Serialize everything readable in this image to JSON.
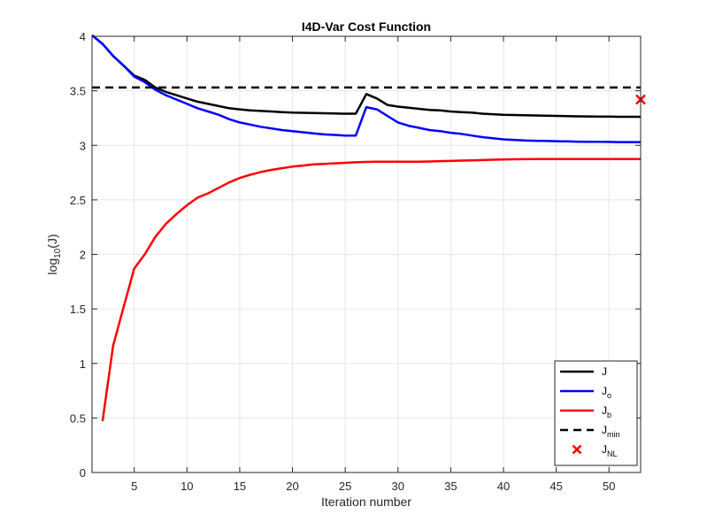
{
  "chart_data": {
    "type": "line",
    "title": "I4D-Var Cost Function",
    "xlabel": "Iteration number",
    "ylabel_base": "log",
    "ylabel_sub": "10",
    "ylabel_tail": "(J)",
    "xlim": [
      1,
      53
    ],
    "ylim": [
      0,
      4
    ],
    "xticks": [
      5,
      10,
      15,
      20,
      25,
      30,
      35,
      40,
      45,
      50
    ],
    "yticks": [
      0,
      0.5,
      1,
      1.5,
      2,
      2.5,
      3,
      3.5,
      4
    ],
    "ytick_labels": [
      "0",
      "0.5",
      "1",
      "1.5",
      "2",
      "2.5",
      "3",
      "3.5",
      "4"
    ],
    "grid": true,
    "legend_position": "bottom-right",
    "series": [
      {
        "name": "J",
        "sub": "",
        "color": "#000000",
        "style": "solid",
        "x": [
          1,
          2,
          3,
          4,
          5,
          6,
          7,
          8,
          9,
          10,
          11,
          12,
          13,
          14,
          15,
          16,
          17,
          18,
          19,
          20,
          21,
          22,
          23,
          24,
          25,
          26,
          27,
          28,
          29,
          30,
          31,
          32,
          33,
          34,
          35,
          36,
          37,
          38,
          39,
          40,
          41,
          42,
          43,
          44,
          45,
          46,
          47,
          48,
          49,
          50,
          51,
          52,
          53
        ],
        "y": [
          4.01,
          3.93,
          3.82,
          3.73,
          3.64,
          3.6,
          3.53,
          3.49,
          3.46,
          3.43,
          3.4,
          3.38,
          3.36,
          3.34,
          3.33,
          3.32,
          3.315,
          3.31,
          3.305,
          3.3,
          3.298,
          3.296,
          3.294,
          3.292,
          3.29,
          3.29,
          3.47,
          3.43,
          3.37,
          3.355,
          3.345,
          3.335,
          3.325,
          3.32,
          3.31,
          3.305,
          3.3,
          3.29,
          3.285,
          3.28,
          3.278,
          3.276,
          3.274,
          3.272,
          3.27,
          3.268,
          3.266,
          3.265,
          3.264,
          3.263,
          3.262,
          3.262,
          3.262
        ]
      },
      {
        "name": "J",
        "sub": "o",
        "color": "#0000ff",
        "style": "solid",
        "x": [
          1,
          2,
          3,
          4,
          5,
          6,
          7,
          8,
          9,
          10,
          11,
          12,
          13,
          14,
          15,
          16,
          17,
          18,
          19,
          20,
          21,
          22,
          23,
          24,
          25,
          26,
          27,
          28,
          29,
          30,
          31,
          32,
          33,
          34,
          35,
          36,
          37,
          38,
          39,
          40,
          41,
          42,
          43,
          44,
          45,
          46,
          47,
          48,
          49,
          50,
          51,
          52,
          53
        ],
        "y": [
          4.01,
          3.93,
          3.82,
          3.73,
          3.63,
          3.58,
          3.51,
          3.46,
          3.42,
          3.38,
          3.34,
          3.31,
          3.28,
          3.24,
          3.21,
          3.19,
          3.17,
          3.155,
          3.14,
          3.13,
          3.12,
          3.11,
          3.1,
          3.095,
          3.09,
          3.09,
          3.35,
          3.33,
          3.27,
          3.21,
          3.18,
          3.16,
          3.14,
          3.13,
          3.115,
          3.105,
          3.09,
          3.075,
          3.065,
          3.055,
          3.05,
          3.045,
          3.042,
          3.04,
          3.038,
          3.036,
          3.034,
          3.033,
          3.032,
          3.031,
          3.03,
          3.03,
          3.03
        ]
      },
      {
        "name": "J",
        "sub": "b",
        "color": "#ff0000",
        "style": "solid",
        "x": [
          2,
          3,
          4,
          5,
          6,
          7,
          8,
          9,
          10,
          11,
          12,
          13,
          14,
          15,
          16,
          17,
          18,
          19,
          20,
          21,
          22,
          23,
          24,
          25,
          26,
          27,
          28,
          29,
          30,
          31,
          32,
          33,
          34,
          35,
          36,
          37,
          38,
          39,
          40,
          41,
          42,
          43,
          44,
          45,
          46,
          47,
          48,
          49,
          50,
          51,
          52,
          53
        ],
        "y": [
          0.47,
          1.16,
          1.52,
          1.87,
          2.0,
          2.16,
          2.28,
          2.37,
          2.45,
          2.52,
          2.56,
          2.61,
          2.66,
          2.7,
          2.73,
          2.755,
          2.775,
          2.79,
          2.805,
          2.815,
          2.825,
          2.83,
          2.835,
          2.84,
          2.845,
          2.848,
          2.85,
          2.85,
          2.85,
          2.85,
          2.85,
          2.852,
          2.855,
          2.857,
          2.86,
          2.862,
          2.865,
          2.868,
          2.87,
          2.872,
          2.873,
          2.874,
          2.875,
          2.875,
          2.875,
          2.875,
          2.875,
          2.875,
          2.875,
          2.875,
          2.875,
          2.875
        ]
      },
      {
        "name": "J",
        "sub": "min",
        "color": "#000000",
        "style": "dashed",
        "x": [
          1,
          53
        ],
        "y": [
          3.53,
          3.53
        ]
      }
    ],
    "points": [
      {
        "name": "J",
        "sub": "NL",
        "color": "#ff0000",
        "marker": "x",
        "x": 53,
        "y": 3.42
      }
    ]
  }
}
